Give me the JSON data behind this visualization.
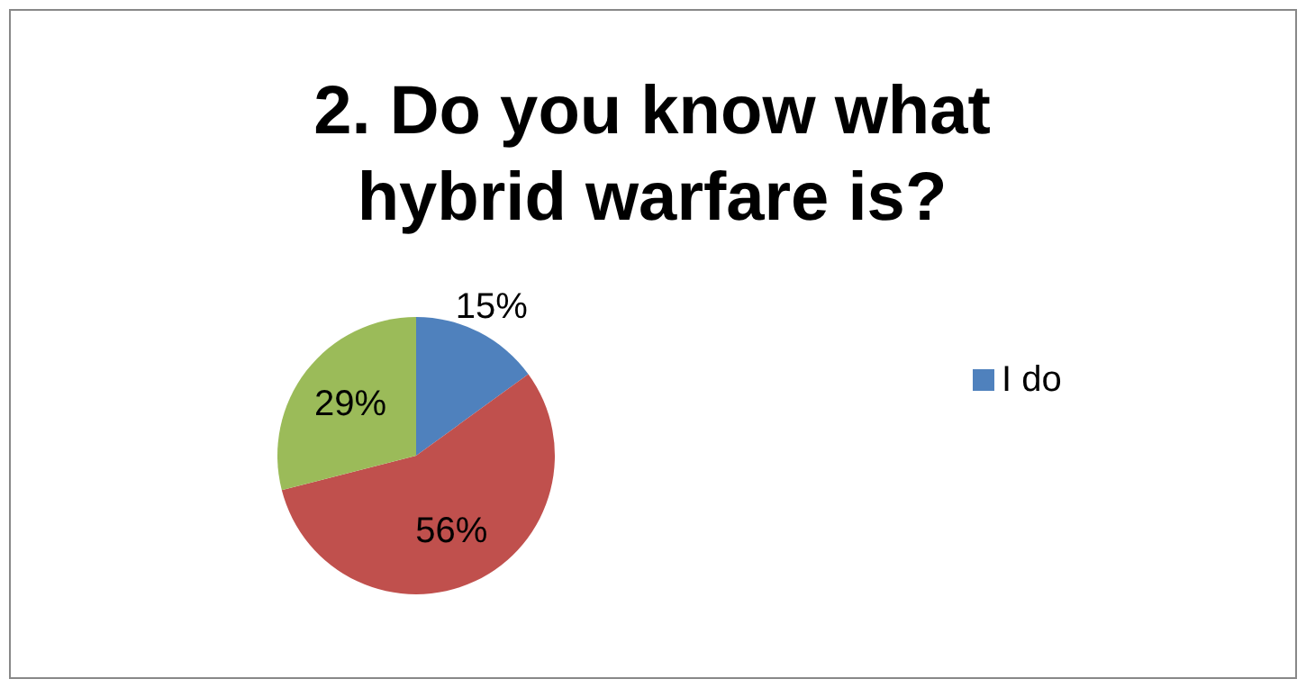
{
  "chart_data": {
    "type": "pie",
    "title": "2. Do you know what hybrid warfare is?",
    "categories": [
      "I do",
      null,
      null
    ],
    "values": [
      15,
      56,
      29
    ],
    "colors": [
      "#4f81bd",
      "#c0504d",
      "#9bbb59"
    ],
    "value_labels": [
      "15%",
      "56%",
      "29%"
    ],
    "legend": "right"
  }
}
